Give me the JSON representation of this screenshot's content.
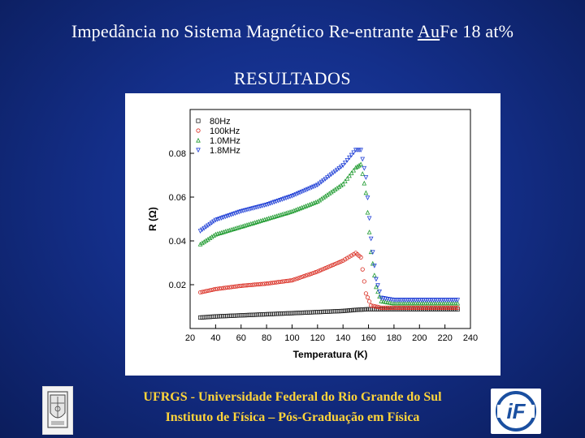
{
  "header": {
    "title_pre": "Impedância no Sistema Magnético Re-entrante ",
    "title_u": "Au",
    "title_post": "Fe 18 at%",
    "subtitle": "RESULTADOS"
  },
  "footer": {
    "line1": "UFRGS - Universidade Federal do Rio Grande do Sul",
    "line2": "Instituto de Física – Pós-Graduação em Física"
  },
  "logos": {
    "right_text": "iF"
  },
  "chart_data": {
    "type": "scatter",
    "xlabel": "Temperatura (K)",
    "ylabel": "R (Ω)",
    "xlim": [
      20,
      240
    ],
    "ylim": [
      0,
      0.1
    ],
    "xticks": [
      20,
      40,
      60,
      80,
      100,
      120,
      140,
      160,
      180,
      200,
      220,
      240
    ],
    "yticks": [
      0.02,
      0.04,
      0.06,
      0.08
    ],
    "legend_position": "top-left",
    "series": [
      {
        "name": "80Hz",
        "marker": "square",
        "color": "#222222",
        "points": [
          [
            28,
            0.005
          ],
          [
            40,
            0.0055
          ],
          [
            60,
            0.006
          ],
          [
            80,
            0.0065
          ],
          [
            100,
            0.007
          ],
          [
            120,
            0.0075
          ],
          [
            140,
            0.008
          ],
          [
            150,
            0.0085
          ],
          [
            160,
            0.0088
          ],
          [
            180,
            0.0088
          ],
          [
            200,
            0.0088
          ],
          [
            230,
            0.0088
          ]
        ]
      },
      {
        "name": "100kHz",
        "marker": "circle",
        "color": "#d92a1f",
        "points": [
          [
            28,
            0.0165
          ],
          [
            40,
            0.018
          ],
          [
            60,
            0.0195
          ],
          [
            80,
            0.0205
          ],
          [
            100,
            0.022
          ],
          [
            120,
            0.026
          ],
          [
            140,
            0.031
          ],
          [
            150,
            0.0345
          ],
          [
            154,
            0.0325
          ],
          [
            158,
            0.016
          ],
          [
            162,
            0.0105
          ],
          [
            170,
            0.0095
          ],
          [
            180,
            0.0095
          ],
          [
            200,
            0.0095
          ],
          [
            230,
            0.0095
          ]
        ]
      },
      {
        "name": "1.0MHz",
        "marker": "triangle-up",
        "color": "#1e9a2f",
        "points": [
          [
            28,
            0.0385
          ],
          [
            40,
            0.043
          ],
          [
            60,
            0.0465
          ],
          [
            80,
            0.05
          ],
          [
            100,
            0.0535
          ],
          [
            120,
            0.058
          ],
          [
            140,
            0.066
          ],
          [
            150,
            0.0735
          ],
          [
            154,
            0.075
          ],
          [
            158,
            0.062
          ],
          [
            162,
            0.035
          ],
          [
            166,
            0.019
          ],
          [
            170,
            0.0125
          ],
          [
            180,
            0.0115
          ],
          [
            200,
            0.0115
          ],
          [
            230,
            0.0115
          ]
        ]
      },
      {
        "name": "1.8MHz",
        "marker": "triangle-down",
        "color": "#1f3fd6",
        "points": [
          [
            28,
            0.0445
          ],
          [
            40,
            0.0495
          ],
          [
            60,
            0.0535
          ],
          [
            80,
            0.0565
          ],
          [
            100,
            0.0605
          ],
          [
            120,
            0.0655
          ],
          [
            140,
            0.0745
          ],
          [
            150,
            0.0815
          ],
          [
            154,
            0.0815
          ],
          [
            158,
            0.069
          ],
          [
            162,
            0.041
          ],
          [
            166,
            0.0225
          ],
          [
            170,
            0.014
          ],
          [
            180,
            0.013
          ],
          [
            200,
            0.013
          ],
          [
            230,
            0.013
          ]
        ]
      }
    ]
  }
}
